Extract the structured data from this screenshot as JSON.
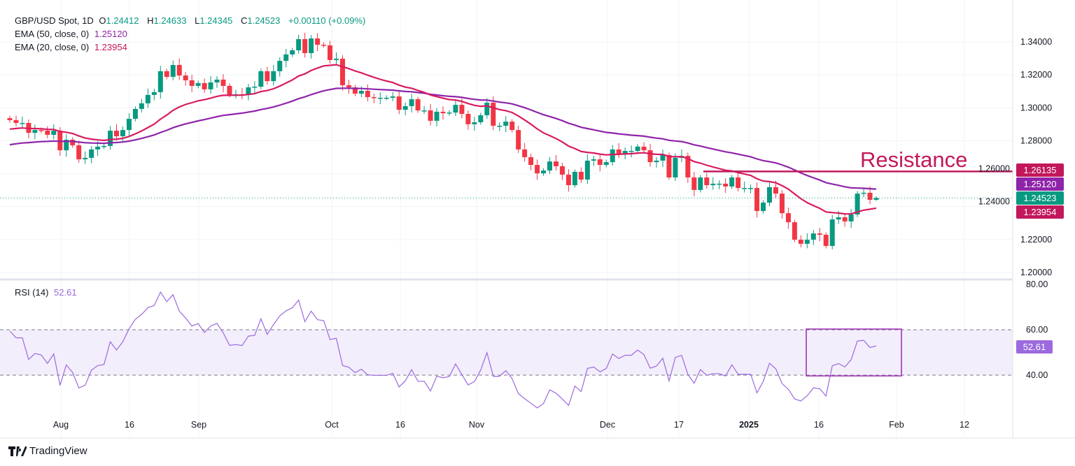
{
  "header": {
    "symbol": "GBP/USD Spot, 1D",
    "open_label": "O",
    "open": "1.24412",
    "high_label": "H",
    "high": "1.24633",
    "low_label": "L",
    "low": "1.24345",
    "close_label": "C",
    "close": "1.24523",
    "change": "+0.00110 (+0.09%)"
  },
  "indicators": {
    "ema50": {
      "label": "EMA (50, close, 0)",
      "value": "1.25120",
      "color": "#8e24aa"
    },
    "ema20": {
      "label": "EMA (20, close, 0)",
      "value": "1.23954",
      "color": "#d81b60"
    },
    "rsi": {
      "label": "RSI (14)",
      "value": "52.61",
      "color": "#9c6ade"
    }
  },
  "annotation": {
    "text": "Resistance",
    "level": 1.26135,
    "level_label": "1.26135",
    "color": "#c2185b"
  },
  "price_tags": {
    "ema50": "1.25120",
    "last": "1.24523",
    "ema20": "1.23954"
  },
  "colors": {
    "up": "#089981",
    "down": "#f23645",
    "last_price": "#089981"
  },
  "branding": {
    "logo_text": "TradingView"
  },
  "chart_data": {
    "type": "candlestick",
    "title": "GBP/USD Spot, 1D",
    "interval": "1D",
    "y_ticks": [
      "1.34000",
      "1.32000",
      "1.30000",
      "1.28000",
      "1.26000",
      "1.24000",
      "1.22000",
      "1.20000"
    ],
    "ylim": [
      1.2,
      1.34
    ],
    "x_ticks": [
      "Aug",
      "16",
      "Sep",
      "Oct",
      "16",
      "Nov",
      "Dec",
      "17",
      "2025",
      "16",
      "Feb",
      "12"
    ],
    "rsi_ticks": [
      "80.00",
      "60.00",
      "40.00"
    ],
    "rsi_band": [
      40,
      60
    ],
    "grid": true,
    "highlight_box": {
      "rsi_range": [
        40,
        60
      ],
      "period": "mid–late Jan 2025"
    },
    "closes": [
      1.2925,
      1.2908,
      1.2908,
      1.2848,
      1.2865,
      1.2861,
      1.2836,
      1.2861,
      1.2742,
      1.2806,
      1.2772,
      1.2687,
      1.2696,
      1.2747,
      1.2764,
      1.2768,
      1.2861,
      1.2827,
      1.2865,
      1.2933,
      1.2993,
      1.3027,
      1.3078,
      1.3095,
      1.3222,
      1.3188,
      1.326,
      1.3196,
      1.3167,
      1.3133,
      1.315,
      1.3112,
      1.3154,
      1.3171,
      1.3133,
      1.3078,
      1.3082,
      1.3078,
      1.3124,
      1.3128,
      1.3222,
      1.3162,
      1.3222,
      1.3285,
      1.3324,
      1.3349,
      1.3417,
      1.3332,
      1.3421,
      1.3383,
      1.3379,
      1.329,
      1.3298,
      1.3137,
      1.3124,
      1.3086,
      1.3103,
      1.3065,
      1.3061,
      1.3061,
      1.3061,
      1.3069,
      1.2988,
      1.301,
      1.3052,
      1.2984,
      1.2984,
      1.2921,
      1.2976,
      1.2967,
      1.2971,
      1.3018,
      1.2963,
      1.29,
      1.2912,
      1.2955,
      1.3031,
      1.2891,
      1.2891,
      1.2916,
      1.2865,
      1.2747,
      1.27,
      1.2653,
      1.2602,
      1.2619,
      1.2674,
      1.2645,
      1.2594,
      1.253,
      1.2611,
      1.2564,
      1.2679,
      1.2687,
      1.2653,
      1.267,
      1.2747,
      1.2721,
      1.2738,
      1.2738,
      1.2764,
      1.2742,
      1.267,
      1.2679,
      1.2713,
      1.2577,
      1.2696,
      1.2708,
      1.2577,
      1.2501,
      1.2577,
      1.253,
      1.2539,
      1.2539,
      1.2522,
      1.2577,
      1.2513,
      1.2513,
      1.2513,
      1.2373,
      1.2424,
      1.2518,
      1.2479,
      1.236,
      1.2305,
      1.2199,
      1.2174,
      1.2199,
      1.2237,
      1.2229,
      1.2161,
      1.2322,
      1.2335,
      1.231,
      1.2352,
      1.2479,
      1.2484,
      1.2441,
      1.2452
    ],
    "last": {
      "open": 1.24412,
      "high": 1.24633,
      "low": 1.24345,
      "close": 1.24523
    }
  }
}
